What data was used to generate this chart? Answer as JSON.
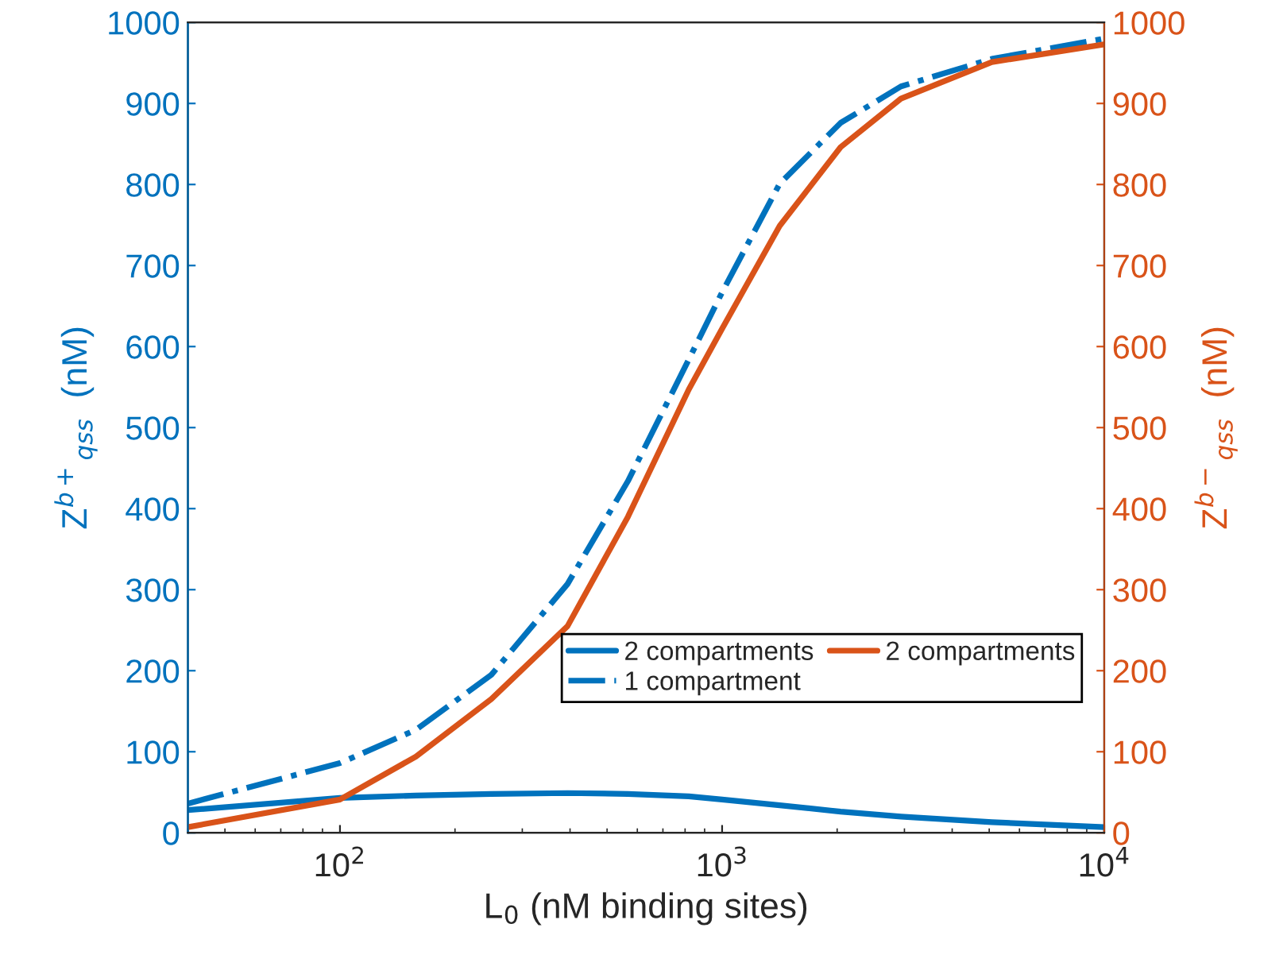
{
  "chart_data": {
    "type": "line",
    "xlabel": "L$_{0}$ (nM binding sites)",
    "ylabel": "Z$^{b+}$$_{qss}$  (nM)",
    "y2label": "Z$^{b−}$$_{qss}$  (nM)",
    "log": "x",
    "xlim": [
      40,
      10000
    ],
    "xticks": [
      {
        "value": 100,
        "label": "10$^{2}$"
      },
      {
        "value": 1000,
        "label": "10$^{3}$"
      },
      {
        "value": 10000,
        "label": "10$^{4}$"
      }
    ],
    "ylim": [
      0,
      1000
    ],
    "yticks": [
      0,
      100,
      200,
      300,
      400,
      500,
      600,
      700,
      800,
      900,
      1000
    ],
    "y2lim": [
      0,
      1000
    ],
    "y2ticks": [
      0,
      100,
      200,
      300,
      400,
      500,
      600,
      700,
      800,
      900,
      1000
    ],
    "grid": false,
    "legend": "bottom right",
    "marker": "none",
    "series": [
      {
        "name": "2 compartments",
        "color": "#0072bd",
        "line_style": "solid",
        "x": [
          40,
          100,
          158,
          249,
          394,
          567,
          818,
          1000,
          1415,
          2042,
          2938,
          5080,
          10000
        ],
        "values": [
          28,
          43,
          46,
          48,
          49,
          48,
          45,
          41,
          34,
          26,
          20,
          13,
          7
        ]
      },
      {
        "name": "1 compartment",
        "color": "#0072bd",
        "line_style": "dashdot",
        "x": [
          40,
          100,
          158,
          249,
          394,
          567,
          818,
          1000,
          1415,
          2042,
          2938,
          5080,
          10000
        ],
        "values": [
          36,
          86,
          127,
          195,
          307,
          434,
          584,
          667,
          801,
          876,
          921,
          955,
          980
        ]
      },
      {
        "name": "2 compartments",
        "color": "#d95319",
        "line_style": "solid",
        "axis": "y2",
        "x": [
          40,
          100,
          158,
          249,
          394,
          567,
          818,
          1000,
          1415,
          2042,
          2938,
          5080,
          10000
        ],
        "values": [
          7,
          41,
          94,
          165,
          255,
          390,
          547,
          622,
          749,
          846,
          906,
          951,
          973
        ]
      }
    ]
  }
}
